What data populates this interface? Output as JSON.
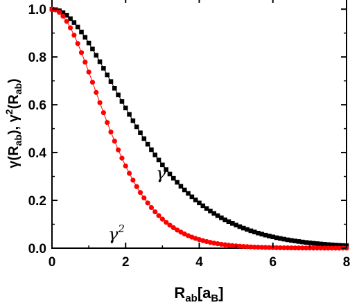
{
  "chart_data": {
    "type": "scatter",
    "x_range": [
      0,
      8
    ],
    "y_range": [
      0,
      1.05
    ],
    "x_ticks": [
      0,
      2,
      4,
      6,
      8
    ],
    "x_tick_labels": [
      "0",
      "2",
      "4",
      "6",
      "8"
    ],
    "y_ticks": [
      0.0,
      0.2,
      0.4,
      0.6,
      0.8,
      1.0
    ],
    "y_tick_labels": [
      "0.0",
      "0.2",
      "0.4",
      "0.6",
      "0.8",
      "1.0"
    ],
    "xlabel": {
      "main": "R",
      "sub1": "ab",
      "mid": "[a",
      "sub2": "B",
      "end": "]"
    },
    "ylabel": {
      "p1": "γ(R",
      "s1": "ab",
      "p2": "), γ",
      "sup": "2",
      "p3": "(R",
      "s2": "ab",
      "p4": ")"
    },
    "grid": false,
    "series": [
      {
        "name": "γ",
        "marker": "square",
        "color": "#000000",
        "function": "(1+R+R^2/3)*exp(-R)",
        "x_start": 0,
        "x_end": 8,
        "x_step": 0.1
      },
      {
        "name": "γ²",
        "marker": "circle",
        "color": "#ff0000",
        "function": "((1+R+R^2/3)*exp(-R))^2",
        "x_start": 0,
        "x_end": 8,
        "x_step": 0.1
      }
    ],
    "annotations": [
      {
        "text": "γ",
        "series": "γ"
      },
      {
        "text": "γ",
        "sup": "2",
        "series": "γ²"
      }
    ]
  }
}
